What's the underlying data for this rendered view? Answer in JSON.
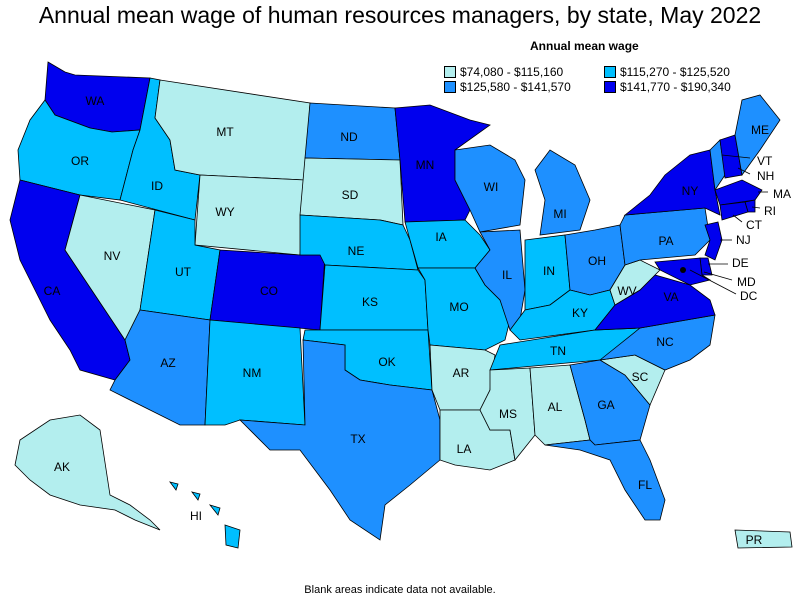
{
  "title": "Annual mean wage of human resources managers, by state, May 2022",
  "legend": {
    "title": "Annual mean wage",
    "items": [
      {
        "label": "$74,080 - $115,160",
        "color": "#b3eeee"
      },
      {
        "label": "$115,270 - $125,520",
        "color": "#00bfff"
      },
      {
        "label": "$125,580 - $141,570",
        "color": "#1e90ff"
      },
      {
        "label": "$141,770 - $190,340",
        "color": "#0000ee"
      }
    ]
  },
  "footnote": "Blank areas indicate data not available.",
  "states": [
    {
      "code": "WA",
      "tier": 3
    },
    {
      "code": "OR",
      "tier": 1
    },
    {
      "code": "CA",
      "tier": 3
    },
    {
      "code": "NV",
      "tier": 0
    },
    {
      "code": "ID",
      "tier": 1
    },
    {
      "code": "MT",
      "tier": 0
    },
    {
      "code": "WY",
      "tier": 0
    },
    {
      "code": "UT",
      "tier": 1
    },
    {
      "code": "AZ",
      "tier": 2
    },
    {
      "code": "CO",
      "tier": 3
    },
    {
      "code": "NM",
      "tier": 1
    },
    {
      "code": "ND",
      "tier": 2
    },
    {
      "code": "SD",
      "tier": 0
    },
    {
      "code": "NE",
      "tier": 1
    },
    {
      "code": "KS",
      "tier": 1
    },
    {
      "code": "OK",
      "tier": 1
    },
    {
      "code": "TX",
      "tier": 2
    },
    {
      "code": "MN",
      "tier": 3
    },
    {
      "code": "IA",
      "tier": 1
    },
    {
      "code": "MO",
      "tier": 1
    },
    {
      "code": "AR",
      "tier": 0
    },
    {
      "code": "LA",
      "tier": 0
    },
    {
      "code": "WI",
      "tier": 2
    },
    {
      "code": "IL",
      "tier": 2
    },
    {
      "code": "MI",
      "tier": 2
    },
    {
      "code": "IN",
      "tier": 1
    },
    {
      "code": "OH",
      "tier": 2
    },
    {
      "code": "KY",
      "tier": 1
    },
    {
      "code": "TN",
      "tier": 1
    },
    {
      "code": "MS",
      "tier": 0
    },
    {
      "code": "AL",
      "tier": 0
    },
    {
      "code": "GA",
      "tier": 2
    },
    {
      "code": "FL",
      "tier": 2
    },
    {
      "code": "SC",
      "tier": 0
    },
    {
      "code": "NC",
      "tier": 2
    },
    {
      "code": "VA",
      "tier": 3
    },
    {
      "code": "WV",
      "tier": 0
    },
    {
      "code": "PA",
      "tier": 2
    },
    {
      "code": "NY",
      "tier": 3
    },
    {
      "code": "VT",
      "tier": 2
    },
    {
      "code": "NH",
      "tier": 3
    },
    {
      "code": "ME",
      "tier": 2
    },
    {
      "code": "MA",
      "tier": 3
    },
    {
      "code": "RI",
      "tier": 3
    },
    {
      "code": "CT",
      "tier": 3
    },
    {
      "code": "NJ",
      "tier": 3
    },
    {
      "code": "DE",
      "tier": 3
    },
    {
      "code": "MD",
      "tier": 3
    },
    {
      "code": "DC",
      "tier": 3
    },
    {
      "code": "AK",
      "tier": 0
    },
    {
      "code": "HI",
      "tier": 1
    },
    {
      "code": "PR",
      "tier": 0
    }
  ]
}
